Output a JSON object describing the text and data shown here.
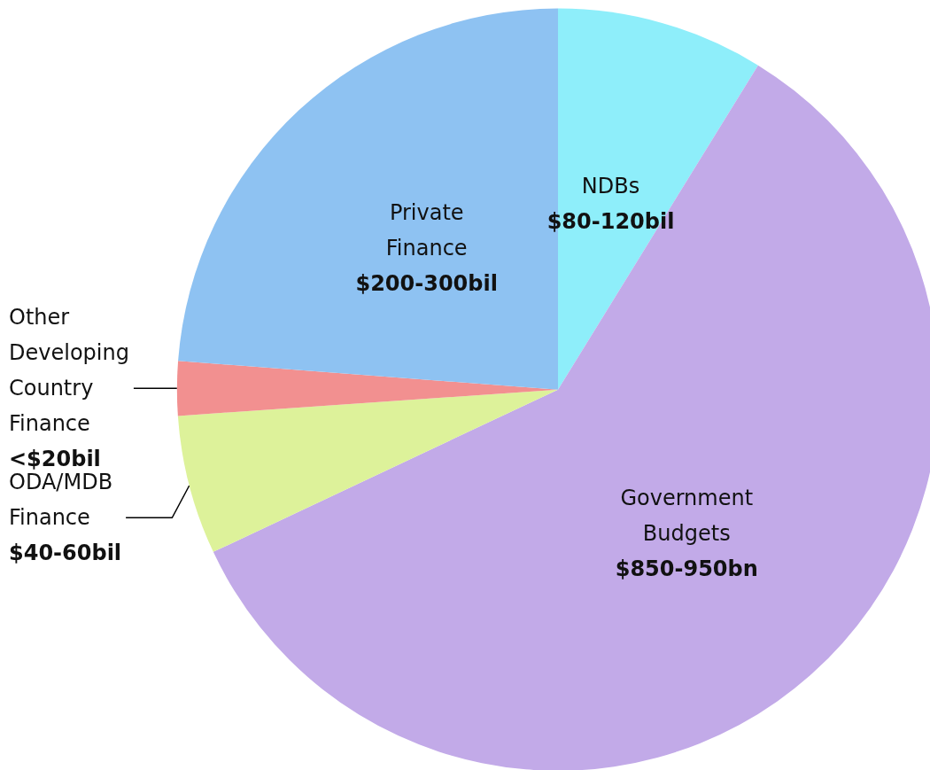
{
  "chart_data": {
    "type": "pie",
    "categories": [
      "NDBs",
      "Government Budgets",
      "ODA/MDB Finance",
      "Other Developing Country Finance",
      "Private Finance"
    ],
    "values": [
      8.8,
      59.2,
      5.9,
      2.3,
      23.8
    ],
    "value_labels": [
      "$80-120bil",
      "$850-950bn",
      "$40-60bil",
      "<$20bil",
      "$200-300bil"
    ],
    "colors": [
      "#8eeefa",
      "#c2aae8",
      "#ddf29a",
      "#f29090",
      "#8ec2f2"
    ],
    "legend": false
  }
}
